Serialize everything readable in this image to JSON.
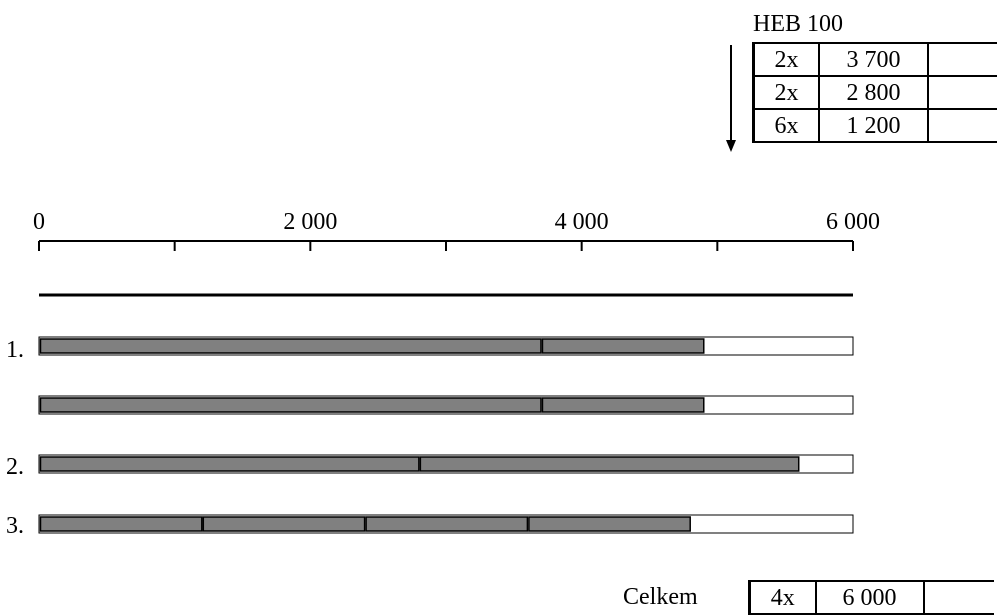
{
  "section": {
    "profile": "HEB 100",
    "cuts": [
      {
        "qty": "2x",
        "length": "3 700"
      },
      {
        "qty": "2x",
        "length": "2 800"
      },
      {
        "qty": "6x",
        "length": "1 200"
      }
    ]
  },
  "scale": {
    "max": 6000,
    "ticks": [
      0,
      1000,
      2000,
      3000,
      4000,
      5000,
      6000
    ],
    "labels": [
      {
        "value": 0,
        "text": "0"
      },
      {
        "value": 2000,
        "text": "2 000"
      },
      {
        "value": 4000,
        "text": "4 000"
      },
      {
        "value": 6000,
        "text": "6 000"
      }
    ]
  },
  "bars": [
    {
      "label": "1.",
      "stock": 6000,
      "pieces": [
        3700,
        1200
      ]
    },
    {
      "label": "",
      "stock": 6000,
      "pieces": [
        3700,
        1200
      ]
    },
    {
      "label": "2.",
      "stock": 6000,
      "pieces": [
        2800,
        2800
      ]
    },
    {
      "label": "3.",
      "stock": 6000,
      "pieces": [
        1200,
        1200,
        1200,
        1200
      ]
    }
  ],
  "total": {
    "label": "Celkem",
    "qty": "4x",
    "length": "6 000"
  },
  "colors": {
    "piece": "#808080",
    "stock": "#ffffff",
    "line": "#000000"
  }
}
